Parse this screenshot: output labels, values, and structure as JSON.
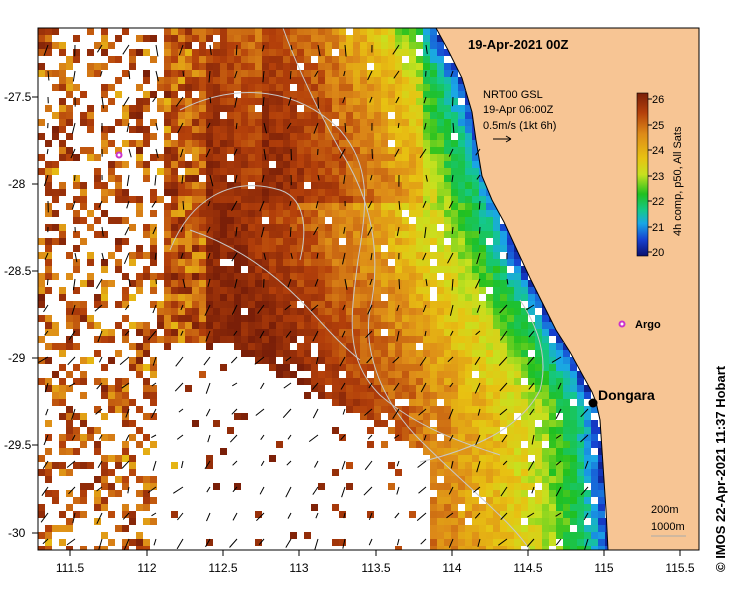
{
  "title": "19-Apr-2021 00Z",
  "velocity_legend": {
    "line1": "NRT00 GSL",
    "line2": "19-Apr 06:00Z",
    "line3": "0.5m/s (1kt 6h)"
  },
  "colorbar": {
    "label": "4h comp, p50, All Sats",
    "ticks": [
      "26",
      "25",
      "24",
      "23",
      "22",
      "21",
      "20"
    ],
    "min": 20,
    "max": 26.3
  },
  "x_ticks": [
    "111.5",
    "112",
    "112.5",
    "113",
    "113.5",
    "114",
    "114.5",
    "115",
    "115.5"
  ],
  "y_ticks": [
    "-27.5",
    "-28",
    "-28.5",
    "-29",
    "-29.5",
    "-30"
  ],
  "places": {
    "argo": "Argo",
    "dongara": "Dongara"
  },
  "depth_legend": {
    "a": "200m",
    "b": "1000m"
  },
  "credit": "© IMOS 22-Apr-2021 11:37 Hobart",
  "colors": {
    "land": "#f7c594",
    "no_data": "#ffffff",
    "argo_marker": "#cc33cc",
    "place_marker": "#000000"
  }
}
